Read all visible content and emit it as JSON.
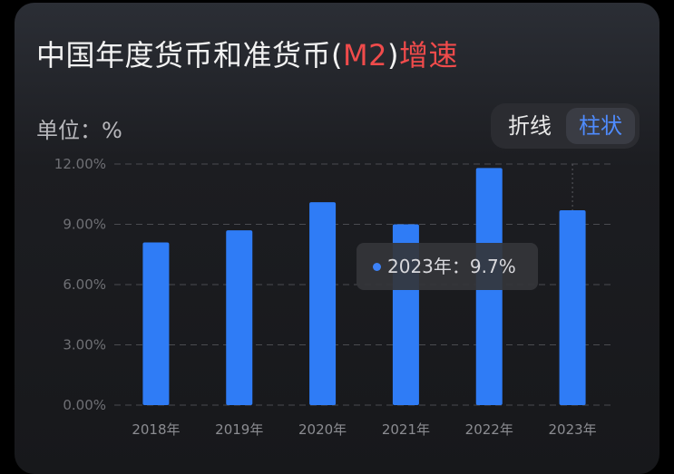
{
  "title": {
    "main": "中国年度货币和准货币(",
    "accent": "M2",
    "close": ")",
    "suffix": "增速"
  },
  "unit_label": "单位：%",
  "toggle": {
    "options": [
      "折线",
      "柱状"
    ],
    "active": "柱状"
  },
  "tooltip": {
    "text": "2023年：9.7%"
  },
  "colors": {
    "bar": "#2f7cf6",
    "accent": "#f04b4b",
    "toggle_active": "#4f8cff"
  },
  "chart_data": {
    "type": "bar",
    "categories": [
      "2018年",
      "2019年",
      "2020年",
      "2021年",
      "2022年",
      "2023年"
    ],
    "values": [
      8.1,
      8.7,
      10.1,
      9.0,
      11.8,
      9.7
    ],
    "ylim": [
      0,
      12
    ],
    "yticks": [
      "0.00%",
      "3.00%",
      "6.00%",
      "9.00%",
      "12.00%"
    ],
    "ytick_values": [
      0,
      3,
      6,
      9,
      12
    ],
    "grid": true,
    "highlighted": "2023年"
  }
}
